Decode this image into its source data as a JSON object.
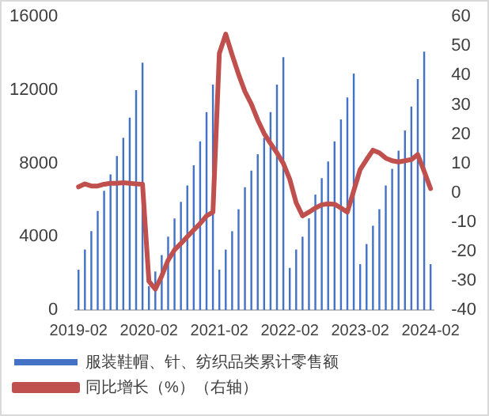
{
  "chart_data": {
    "type": "bar",
    "categories": [
      "2019-02",
      null,
      null,
      null,
      null,
      null,
      null,
      null,
      null,
      null,
      null,
      "2020-02",
      null,
      null,
      null,
      null,
      null,
      null,
      null,
      null,
      null,
      null,
      "2021-02",
      null,
      null,
      null,
      null,
      null,
      null,
      null,
      null,
      null,
      null,
      "2022-02",
      null,
      null,
      null,
      null,
      null,
      null,
      null,
      null,
      null,
      null,
      "2023-02",
      null,
      null,
      null,
      null,
      null,
      null,
      null,
      null,
      null,
      null,
      "2024-02"
    ],
    "series": [
      {
        "name": "服装鞋帽、针、纺织品类累计零售额",
        "color": "#4472c4",
        "values": [
          2200,
          3300,
          4300,
          5400,
          6500,
          7400,
          8400,
          9400,
          10500,
          12000,
          13500,
          1300,
          2100,
          3000,
          4000,
          5000,
          5900,
          6800,
          7900,
          9200,
          10800,
          12300,
          2200,
          3300,
          4300,
          5500,
          6700,
          7600,
          8500,
          9400,
          10800,
          12300,
          13800,
          2300,
          3300,
          4000,
          5000,
          6300,
          7200,
          8100,
          9200,
          10400,
          11600,
          12900,
          2500,
          3600,
          4600,
          5500,
          6800,
          7700,
          8700,
          9800,
          11100,
          12600,
          14100,
          2500
        ]
      },
      {
        "name": "同比增长（%）（右轴）",
        "type": "line",
        "axis": "y2",
        "color": "#c0504d",
        "values": [
          2.0,
          3.0,
          2.3,
          2.3,
          2.9,
          3.2,
          3.2,
          3.4,
          3.2,
          3.0,
          2.9,
          -30.2,
          -32.9,
          -28.4,
          -23,
          -19.5,
          -17.3,
          -15,
          -12.7,
          -10.5,
          -7.9,
          -6.6,
          47.5,
          54.1,
          47,
          40.4,
          34.5,
          30.2,
          24.8,
          20.2,
          16.8,
          13.6,
          10,
          4.6,
          -3.4,
          -7.9,
          -6.6,
          -5.2,
          -4.1,
          -3.8,
          -3.9,
          -5.2,
          -6.6,
          0.7,
          7.9,
          11.3,
          14.5,
          13.6,
          11.8,
          10.9,
          10.5,
          10.9,
          11.3,
          13,
          7.3,
          1.4
        ]
      }
    ],
    "ylim": [
      0,
      16000
    ],
    "yticks": [
      0,
      4000,
      8000,
      12000,
      16000
    ],
    "y2lim": [
      -40,
      60
    ],
    "y2ticks": [
      -40,
      -30,
      -20,
      -10,
      0,
      10,
      20,
      30,
      40,
      50,
      60
    ],
    "grid": false,
    "legend": "bottom",
    "marker": "none",
    "line_style": "solid"
  }
}
